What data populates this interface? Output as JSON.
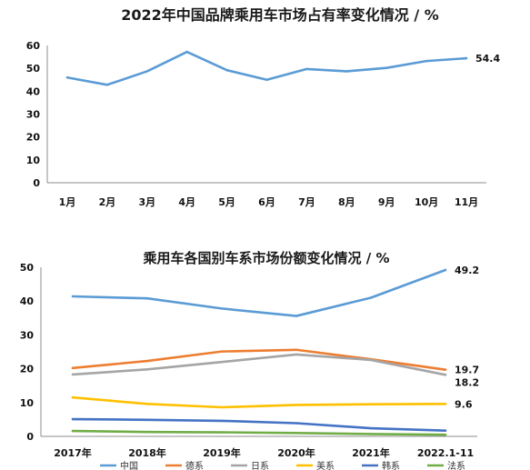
{
  "chart_data": [
    {
      "type": "line",
      "title": "2022年中国品牌乘用车市场占有率变化情况 / %",
      "xlabel": "",
      "ylabel": "",
      "categories": [
        "1月",
        "2月",
        "3月",
        "4月",
        "5月",
        "6月",
        "7月",
        "8月",
        "9月",
        "10月",
        "11月"
      ],
      "ylim": [
        0,
        60
      ],
      "yticks": [
        0,
        10,
        20,
        30,
        40,
        50,
        60
      ],
      "grid": false,
      "series": [
        {
          "values": [
            46.0,
            42.8,
            48.7,
            57.2,
            49.2,
            45.0,
            49.7,
            48.7,
            50.2,
            53.2,
            54.4
          ],
          "color": "#5b9bd5"
        }
      ],
      "end_labels": [
        "54.4"
      ]
    },
    {
      "type": "line",
      "title": "乘用车各国别车系市场份额变化情况 / %",
      "xlabel": "",
      "ylabel": "",
      "categories": [
        "2017年",
        "2018年",
        "2019年",
        "2020年",
        "2021年",
        "2022.1-11"
      ],
      "ylim": [
        0,
        50
      ],
      "yticks": [
        0,
        10,
        20,
        30,
        40,
        50
      ],
      "grid": false,
      "legend": "bottom",
      "series": [
        {
          "name": "中国",
          "values": [
            41.4,
            40.8,
            37.8,
            35.6,
            41.0,
            49.2
          ],
          "color": "#5b9bd5"
        },
        {
          "name": "德系",
          "values": [
            20.2,
            22.3,
            25.1,
            25.6,
            22.8,
            19.7
          ],
          "color": "#ed7d31"
        },
        {
          "name": "日系",
          "values": [
            18.3,
            19.8,
            22.0,
            24.2,
            22.6,
            18.2
          ],
          "color": "#a5a5a5"
        },
        {
          "name": "美系",
          "values": [
            11.5,
            9.6,
            8.6,
            9.3,
            9.5,
            9.6
          ],
          "color": "#ffc000"
        },
        {
          "name": "韩系",
          "values": [
            5.1,
            4.9,
            4.6,
            3.9,
            2.4,
            1.7
          ],
          "color": "#4472c4"
        },
        {
          "name": "法系",
          "values": [
            1.6,
            1.3,
            1.2,
            1.0,
            0.7,
            0.5
          ],
          "color": "#70ad47"
        }
      ],
      "end_labels": [
        "49.2",
        "19.7",
        "18.2",
        "9.6"
      ]
    }
  ]
}
